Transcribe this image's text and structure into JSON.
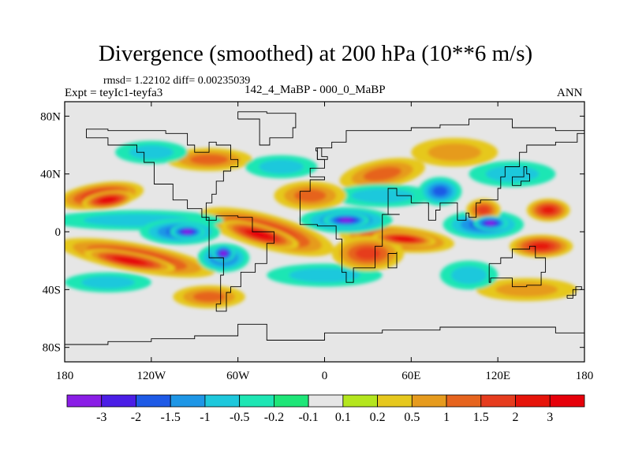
{
  "chart_data": {
    "type": "heatmap",
    "title": "Divergence (smoothed) at 200 hPa (10**6 m/s)",
    "stats_line": "rmsd= 1.22102 diff= 0.00235039",
    "experiment": "Expt = teyIc1-teyfa3",
    "periods": "142_4_MaBP - 000_0_MaBP",
    "season": "ANN",
    "x_range": [
      -180,
      180
    ],
    "y_range": [
      -90,
      90
    ],
    "x_ticks": [
      {
        "value": -180,
        "label": "180"
      },
      {
        "value": -120,
        "label": "120W"
      },
      {
        "value": -60,
        "label": "60W"
      },
      {
        "value": 0,
        "label": "0"
      },
      {
        "value": 60,
        "label": "60E"
      },
      {
        "value": 120,
        "label": "120E"
      },
      {
        "value": 180,
        "label": "180"
      }
    ],
    "y_ticks": [
      {
        "value": 80,
        "label": "80N"
      },
      {
        "value": 40,
        "label": "40N"
      },
      {
        "value": 0,
        "label": "0"
      },
      {
        "value": -40,
        "label": "40S"
      },
      {
        "value": -80,
        "label": "80S"
      }
    ],
    "levels": [
      "-3",
      "-2",
      "-1.5",
      "-1",
      "-0.5",
      "-0.2",
      "-0.1",
      "0.1",
      "0.2",
      "0.5",
      "1",
      "1.5",
      "2",
      "3"
    ],
    "colors": [
      "#8a1ee6",
      "#4b1ee6",
      "#1e5ae6",
      "#1e96e6",
      "#1ec8dc",
      "#1ee6b4",
      "#1ee678",
      "#e6e6e6",
      "#b4e61e",
      "#e6c81e",
      "#e69b1e",
      "#e6641e",
      "#e63c1e",
      "#e6140a",
      "#e6000a"
    ],
    "regions": [
      {
        "lon": -155,
        "lat": 25,
        "rx": 30,
        "ry": 9,
        "rot": -8,
        "value": 2.2
      },
      {
        "lon": -150,
        "lat": 22,
        "rx": 18,
        "ry": 6,
        "rot": -8,
        "value": 3.2
      },
      {
        "lon": -130,
        "lat": -18,
        "rx": 55,
        "ry": 10,
        "rot": 10,
        "value": 2.1
      },
      {
        "lon": -135,
        "lat": -20,
        "rx": 32,
        "ry": 6,
        "rot": 10,
        "value": 3.2
      },
      {
        "lon": -40,
        "lat": 0,
        "rx": 48,
        "ry": 12,
        "rot": 15,
        "value": 2.4
      },
      {
        "lon": -45,
        "lat": -2,
        "rx": 28,
        "ry": 7,
        "rot": 15,
        "value": 3.3
      },
      {
        "lon": 50,
        "lat": -5,
        "rx": 40,
        "ry": 9,
        "rot": 5,
        "value": 2.6
      },
      {
        "lon": 55,
        "lat": -5,
        "rx": 22,
        "ry": 5,
        "rot": 5,
        "value": 3.3
      },
      {
        "lon": 30,
        "lat": -15,
        "rx": 25,
        "ry": 12,
        "rot": 0,
        "value": 1.6
      },
      {
        "lon": 150,
        "lat": -10,
        "rx": 22,
        "ry": 8,
        "rot": 0,
        "value": 2.5
      },
      {
        "lon": 155,
        "lat": 15,
        "rx": 15,
        "ry": 8,
        "rot": 0,
        "value": 2.1
      },
      {
        "lon": 110,
        "lat": 15,
        "rx": 12,
        "ry": 8,
        "rot": 0,
        "value": 1.7
      },
      {
        "lon": -10,
        "lat": 25,
        "rx": 25,
        "ry": 10,
        "rot": 0,
        "value": 1.3
      },
      {
        "lon": 40,
        "lat": 40,
        "rx": 30,
        "ry": 10,
        "rot": -10,
        "value": 1.3
      },
      {
        "lon": -80,
        "lat": 50,
        "rx": 30,
        "ry": 8,
        "rot": 0,
        "value": 1.2
      },
      {
        "lon": -80,
        "lat": -45,
        "rx": 25,
        "ry": 8,
        "rot": 0,
        "value": 1.3
      },
      {
        "lon": 140,
        "lat": -40,
        "rx": 35,
        "ry": 8,
        "rot": 0,
        "value": 0.8
      },
      {
        "lon": 90,
        "lat": 55,
        "rx": 30,
        "ry": 10,
        "rot": 0,
        "value": 0.8
      },
      {
        "lon": -100,
        "lat": 0,
        "rx": 28,
        "ry": 9,
        "rot": 0,
        "value": -1.6
      },
      {
        "lon": -95,
        "lat": 0,
        "rx": 12,
        "ry": 5,
        "rot": 0,
        "value": -3.2
      },
      {
        "lon": -70,
        "lat": -18,
        "rx": 18,
        "ry": 10,
        "rot": 0,
        "value": -1.7
      },
      {
        "lon": -70,
        "lat": -15,
        "rx": 8,
        "ry": 6,
        "rot": 0,
        "value": -3.2
      },
      {
        "lon": 15,
        "lat": 8,
        "rx": 32,
        "ry": 9,
        "rot": 0,
        "value": -1.6
      },
      {
        "lon": 15,
        "lat": 8,
        "rx": 16,
        "ry": 5,
        "rot": 0,
        "value": -3.2
      },
      {
        "lon": 110,
        "lat": 5,
        "rx": 28,
        "ry": 10,
        "rot": 0,
        "value": -1.6
      },
      {
        "lon": 115,
        "lat": 6,
        "rx": 12,
        "ry": 5,
        "rot": 0,
        "value": -3.2
      },
      {
        "lon": 80,
        "lat": 28,
        "rx": 15,
        "ry": 10,
        "rot": 0,
        "value": -1.6
      },
      {
        "lon": -130,
        "lat": 8,
        "rx": 60,
        "ry": 7,
        "rot": 0,
        "value": -0.7
      },
      {
        "lon": -150,
        "lat": -35,
        "rx": 30,
        "ry": 7,
        "rot": 0,
        "value": -0.5
      },
      {
        "lon": 40,
        "lat": 25,
        "rx": 35,
        "ry": 8,
        "rot": 0,
        "value": -0.6
      },
      {
        "lon": -30,
        "lat": 45,
        "rx": 25,
        "ry": 8,
        "rot": 0,
        "value": -0.6
      },
      {
        "lon": 0,
        "lat": -30,
        "rx": 40,
        "ry": 8,
        "rot": 0,
        "value": -0.5
      },
      {
        "lon": 130,
        "lat": 40,
        "rx": 30,
        "ry": 9,
        "rot": 0,
        "value": -0.6
      },
      {
        "lon": -120,
        "lat": 55,
        "rx": 25,
        "ry": 8,
        "rot": 0,
        "value": -0.5
      },
      {
        "lon": 100,
        "lat": -30,
        "rx": 20,
        "ry": 10,
        "rot": 0,
        "value": -0.5
      }
    ],
    "coastlines": [
      {
        "name": "north-america",
        "points": [
          [
            -165,
            65
          ],
          [
            -150,
            60
          ],
          [
            -130,
            55
          ],
          [
            -125,
            48
          ],
          [
            -118,
            33
          ],
          [
            -105,
            22
          ],
          [
            -95,
            16
          ],
          [
            -85,
            10
          ],
          [
            -80,
            8
          ],
          [
            -82,
            20
          ],
          [
            -78,
            26
          ],
          [
            -75,
            35
          ],
          [
            -70,
            42
          ],
          [
            -65,
            45
          ],
          [
            -60,
            50
          ],
          [
            -65,
            60
          ],
          [
            -75,
            62
          ],
          [
            -80,
            55
          ],
          [
            -90,
            60
          ],
          [
            -95,
            68
          ],
          [
            -110,
            70
          ],
          [
            -130,
            70
          ],
          [
            -150,
            71
          ],
          [
            -165,
            65
          ]
        ]
      },
      {
        "name": "greenland",
        "points": [
          [
            -60,
            78
          ],
          [
            -45,
            60
          ],
          [
            -38,
            65
          ],
          [
            -22,
            72
          ],
          [
            -20,
            82
          ],
          [
            -40,
            83
          ],
          [
            -60,
            78
          ]
        ]
      },
      {
        "name": "south-america",
        "points": [
          [
            -80,
            8
          ],
          [
            -75,
            11
          ],
          [
            -60,
            10
          ],
          [
            -50,
            0
          ],
          [
            -35,
            -8
          ],
          [
            -40,
            -22
          ],
          [
            -48,
            -28
          ],
          [
            -58,
            -38
          ],
          [
            -65,
            -42
          ],
          [
            -68,
            -55
          ],
          [
            -75,
            -50
          ],
          [
            -72,
            -30
          ],
          [
            -70,
            -18
          ],
          [
            -80,
            -5
          ],
          [
            -80,
            8
          ]
        ]
      },
      {
        "name": "africa-eurasia",
        "points": [
          [
            -17,
            15
          ],
          [
            -17,
            28
          ],
          [
            -10,
            36
          ],
          [
            0,
            38
          ],
          [
            -10,
            44
          ],
          [
            0,
            50
          ],
          [
            -5,
            58
          ],
          [
            5,
            62
          ],
          [
            15,
            70
          ],
          [
            30,
            70
          ],
          [
            60,
            72
          ],
          [
            80,
            74
          ],
          [
            100,
            78
          ],
          [
            130,
            72
          ],
          [
            160,
            70
          ],
          [
            180,
            68
          ],
          [
            175,
            62
          ],
          [
            160,
            60
          ],
          [
            140,
            55
          ],
          [
            135,
            45
          ],
          [
            125,
            38
          ],
          [
            122,
            30
          ],
          [
            120,
            22
          ],
          [
            108,
            20
          ],
          [
            105,
            10
          ],
          [
            100,
            13
          ],
          [
            98,
            8
          ],
          [
            92,
            20
          ],
          [
            80,
            15
          ],
          [
            77,
            8
          ],
          [
            72,
            20
          ],
          [
            60,
            25
          ],
          [
            55,
            25
          ],
          [
            50,
            30
          ],
          [
            44,
            12
          ],
          [
            52,
            12
          ],
          [
            40,
            -10
          ],
          [
            35,
            -25
          ],
          [
            20,
            -35
          ],
          [
            15,
            -28
          ],
          [
            12,
            -5
          ],
          [
            8,
            4
          ],
          [
            -5,
            5
          ],
          [
            -17,
            15
          ]
        ]
      },
      {
        "name": "australia",
        "points": [
          [
            114,
            -22
          ],
          [
            122,
            -18
          ],
          [
            130,
            -12
          ],
          [
            136,
            -12
          ],
          [
            142,
            -10
          ],
          [
            146,
            -18
          ],
          [
            153,
            -28
          ],
          [
            150,
            -37
          ],
          [
            140,
            -38
          ],
          [
            130,
            -32
          ],
          [
            115,
            -35
          ],
          [
            114,
            -22
          ]
        ]
      },
      {
        "name": "madagascar",
        "points": [
          [
            44,
            -15
          ],
          [
            50,
            -14
          ],
          [
            50,
            -25
          ],
          [
            44,
            -22
          ],
          [
            44,
            -15
          ]
        ]
      },
      {
        "name": "antarctica",
        "points": [
          [
            -180,
            -78
          ],
          [
            -150,
            -76
          ],
          [
            -120,
            -74
          ],
          [
            -90,
            -72
          ],
          [
            -60,
            -64
          ],
          [
            -40,
            -75
          ],
          [
            0,
            -70
          ],
          [
            40,
            -68
          ],
          [
            80,
            -66
          ],
          [
            120,
            -66
          ],
          [
            160,
            -70
          ],
          [
            180,
            -78
          ]
        ]
      },
      {
        "name": "new-zealand",
        "points": [
          [
            168,
            -46
          ],
          [
            172,
            -40
          ],
          [
            178,
            -38
          ],
          [
            174,
            -44
          ],
          [
            168,
            -46
          ]
        ]
      },
      {
        "name": "uk",
        "points": [
          [
            -5,
            50
          ],
          [
            2,
            52
          ],
          [
            -2,
            58
          ],
          [
            -6,
            56
          ],
          [
            -5,
            50
          ]
        ]
      },
      {
        "name": "japan",
        "points": [
          [
            130,
            32
          ],
          [
            136,
            35
          ],
          [
            142,
            40
          ],
          [
            140,
            45
          ],
          [
            138,
            38
          ],
          [
            130,
            32
          ]
        ]
      }
    ]
  }
}
